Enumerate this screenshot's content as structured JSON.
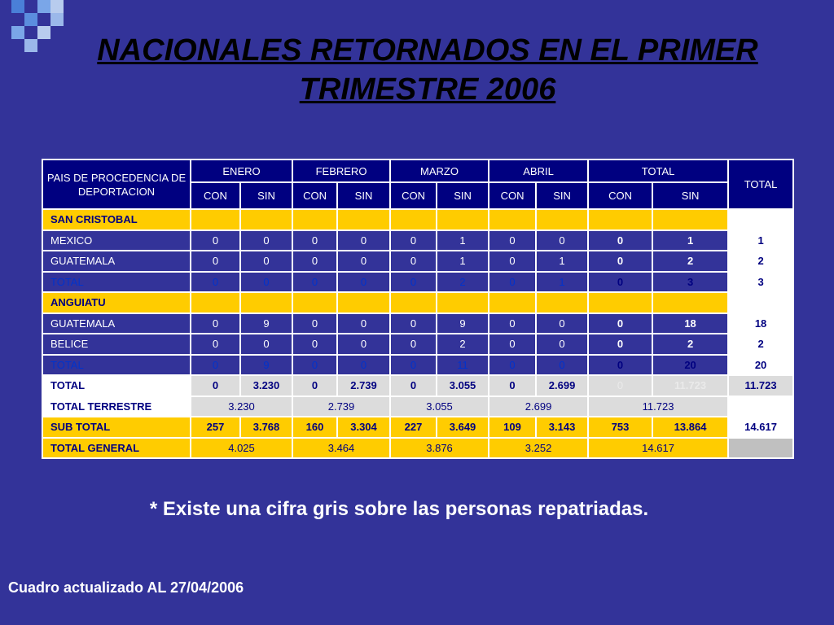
{
  "title_line1": "NACIONALES  RETORNADOS EN EL PRIMER",
  "title_line2": "TRIMESTRE 2006",
  "header": {
    "origin": "PAIS DE PROCEDENCIA DE DEPORTACION",
    "months": [
      "ENERO",
      "FEBRERO",
      "MARZO",
      "ABRIL",
      "TOTAL"
    ],
    "total": "TOTAL",
    "con": "CON",
    "sin": "SIN"
  },
  "sections": [
    {
      "name": "SAN CRISTOBAL",
      "rows": [
        {
          "label": "MEXICO",
          "values": [
            "0",
            "0",
            "0",
            "0",
            "0",
            "1",
            "0",
            "0",
            "0",
            "1"
          ],
          "total": "1"
        },
        {
          "label": "GUATEMALA",
          "values": [
            "0",
            "0",
            "0",
            "0",
            "0",
            "1",
            "0",
            "1",
            "0",
            "2"
          ],
          "total": "2"
        }
      ],
      "subtotal": {
        "label": "TOTAL",
        "values": [
          "0",
          "0",
          "0",
          "0",
          "0",
          "2",
          "0",
          "1",
          "0",
          "3"
        ],
        "total": "3"
      }
    },
    {
      "name": "ANGUIATU",
      "rows": [
        {
          "label": "GUATEMALA",
          "values": [
            "0",
            "9",
            "0",
            "0",
            "0",
            "9",
            "0",
            "0",
            "0",
            "18"
          ],
          "total": "18"
        },
        {
          "label": "BELICE",
          "values": [
            "0",
            "0",
            "0",
            "0",
            "0",
            "2",
            "0",
            "0",
            "0",
            "2"
          ],
          "total": "2"
        }
      ],
      "subtotal": {
        "label": "TOTAL",
        "values": [
          "0",
          "9",
          "0",
          "0",
          "0",
          "11",
          "0",
          "0",
          "0",
          "20"
        ],
        "total": "20"
      }
    }
  ],
  "grand_total_row": {
    "label": "TOTAL",
    "values": [
      "0",
      "3.230",
      "0",
      "2.739",
      "0",
      "3.055",
      "0",
      "2.699",
      "0",
      "11.723"
    ],
    "total": "11.723"
  },
  "total_terrestre": {
    "label": "TOTAL TERRESTRE",
    "values": [
      "3.230",
      "2.739",
      "3.055",
      "2.699",
      "11.723"
    ]
  },
  "sub_total": {
    "label": "SUB TOTAL",
    "values": [
      "257",
      "3.768",
      "160",
      "3.304",
      "227",
      "3.649",
      "109",
      "3.143",
      "753",
      "13.864"
    ],
    "total": "14.617"
  },
  "total_general": {
    "label": "TOTAL GENERAL",
    "values": [
      "4.025",
      "3.464",
      "3.876",
      "3.252",
      "14.617"
    ]
  },
  "note": "* Existe una cifra gris sobre las personas repatriadas.",
  "footer": "Cuadro actualizado AL  27/04/2006",
  "colors": {
    "background": "#333399",
    "header_bg": "#000080",
    "section_yellow": "#ffcc00",
    "grey_row": "#dcdcdc"
  }
}
